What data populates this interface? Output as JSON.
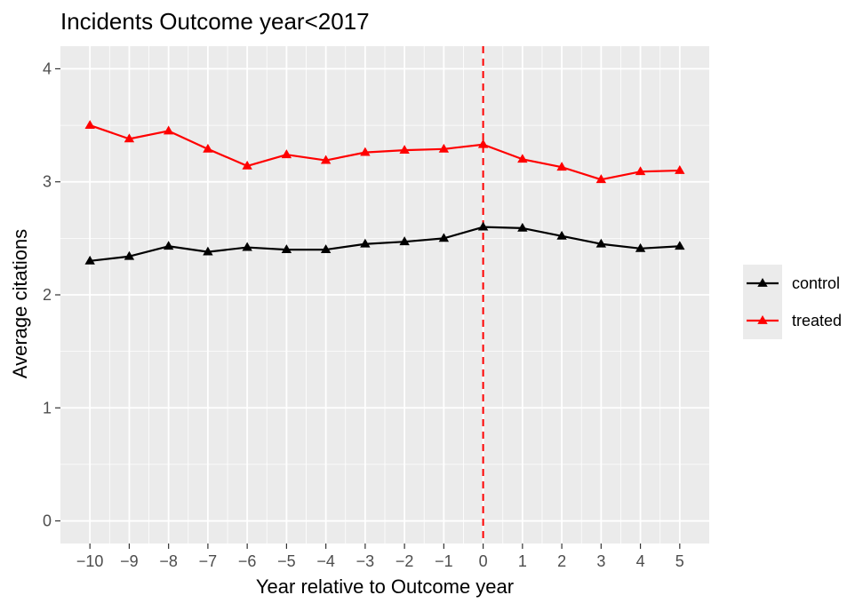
{
  "chart_data": {
    "type": "line",
    "title": "Incidents Outcome year<2017",
    "xlabel": "Year relative to Outcome year",
    "ylabel": "Average citations",
    "x": [
      -10,
      -9,
      -8,
      -7,
      -6,
      -5,
      -4,
      -3,
      -2,
      -1,
      0,
      1,
      2,
      3,
      4,
      5
    ],
    "x_tick_labels": [
      "−10",
      "−9",
      "−8",
      "−7",
      "−6",
      "−5",
      "−4",
      "−3",
      "−2",
      "−1",
      "0",
      "1",
      "2",
      "3",
      "4",
      "5"
    ],
    "xlim": [
      -10.75,
      5.75
    ],
    "y_ticks": [
      0,
      1,
      2,
      3,
      4
    ],
    "y_tick_labels": [
      "0",
      "1",
      "2",
      "3",
      "4"
    ],
    "ylim": [
      -0.2,
      4.2
    ],
    "grid": true,
    "legend_position": "right",
    "series": [
      {
        "name": "control",
        "color": "#000000",
        "marker": "triangle",
        "values": [
          2.3,
          2.34,
          2.43,
          2.38,
          2.42,
          2.4,
          2.4,
          2.45,
          2.47,
          2.5,
          2.6,
          2.59,
          2.52,
          2.45,
          2.41,
          2.43
        ]
      },
      {
        "name": "treated",
        "color": "#ff0000",
        "marker": "triangle",
        "values": [
          3.5,
          3.38,
          3.45,
          3.29,
          3.14,
          3.24,
          3.19,
          3.26,
          3.28,
          3.29,
          3.33,
          3.2,
          3.13,
          3.02,
          3.09,
          3.1
        ]
      }
    ],
    "reference_line": {
      "x": 0,
      "color": "#ff0000",
      "style": "dashed"
    },
    "panel_background": "#ebebeb",
    "gridline_color": "#ffffff"
  }
}
